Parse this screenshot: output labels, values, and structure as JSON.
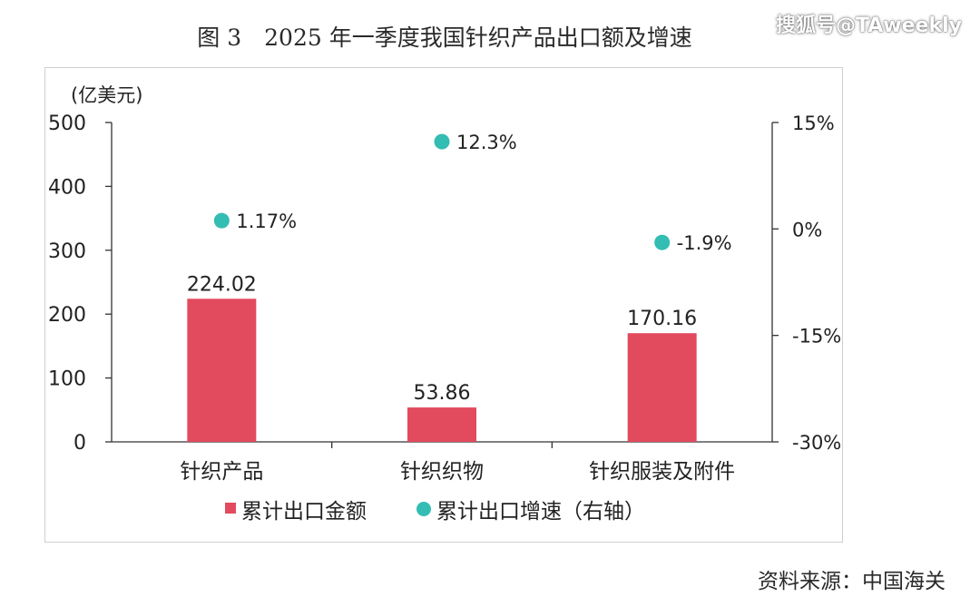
{
  "title": "图 3　2025 年一季度我国针织产品出口额及增速",
  "watermark": "搜狐号@TAweekly",
  "source": "资料来源：中国海关",
  "colors": {
    "bar": "#e24a5e",
    "dot": "#33bdb3",
    "axis": "#333333",
    "text": "#222222"
  },
  "chart_data": {
    "type": "bar",
    "categories": [
      "针织产品",
      "针织织物",
      "针织服装及附件"
    ],
    "series": [
      {
        "name": "累计出口金额",
        "type": "bar",
        "axis": "left",
        "values": [
          224.02,
          53.86,
          170.16
        ],
        "labels": [
          "224.02",
          "53.86",
          "170.16"
        ]
      },
      {
        "name": "累计出口增速（右轴）",
        "type": "scatter",
        "axis": "right",
        "values": [
          1.17,
          12.3,
          -1.9
        ],
        "labels": [
          "1.17%",
          "12.3%",
          "-1.9%"
        ]
      }
    ],
    "left_axis": {
      "unit_label": "(亿美元)",
      "ylim": [
        0,
        500
      ],
      "ticks": [
        "0",
        "100",
        "200",
        "300",
        "400",
        "500"
      ]
    },
    "right_axis": {
      "ylim": [
        -30,
        15
      ],
      "ticks": [
        "-30%",
        "-15%",
        "0%",
        "15%"
      ]
    },
    "legend": {
      "position": "bottom",
      "entries": [
        "累计出口金额",
        "累计出口增速（右轴）"
      ]
    },
    "grid": false
  }
}
